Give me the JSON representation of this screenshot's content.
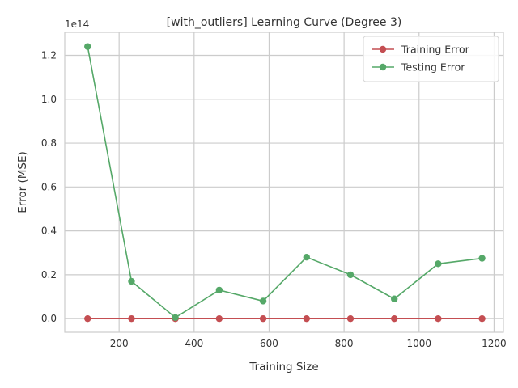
{
  "chart_data": {
    "type": "line",
    "title": "[with_outliers] Learning Curve (Degree 3)",
    "xlabel": "Training Size",
    "ylabel": "Error (MSE)",
    "y_offset_label": "1e14",
    "xlim": [
      55,
      1225
    ],
    "ylim": [
      -0.062,
      1.305
    ],
    "y_scale_note": "values in units of 1e14",
    "xticks": [
      200,
      400,
      600,
      800,
      1000,
      1200
    ],
    "yticks": [
      0.0,
      0.2,
      0.4,
      0.6,
      0.8,
      1.0,
      1.2
    ],
    "xtick_labels": [
      "200",
      "400",
      "600",
      "800",
      "1000",
      "1200"
    ],
    "ytick_labels": [
      "0.0",
      "0.2",
      "0.4",
      "0.6",
      "0.8",
      "1.0",
      "1.2"
    ],
    "grid": true,
    "legend_position": "top-right",
    "x": [
      116,
      233,
      350,
      467,
      584,
      700,
      817,
      934,
      1051,
      1168
    ],
    "series": [
      {
        "name": "Training Error",
        "color": "#c44e52",
        "values": [
          0.0,
          0.0,
          0.0,
          0.0,
          0.0,
          0.0,
          0.0,
          0.0,
          0.0,
          0.0
        ]
      },
      {
        "name": "Testing Error",
        "color": "#55a868",
        "values": [
          1.24,
          0.17,
          0.005,
          0.13,
          0.08,
          0.28,
          0.2,
          0.09,
          0.25,
          0.275
        ]
      }
    ]
  }
}
